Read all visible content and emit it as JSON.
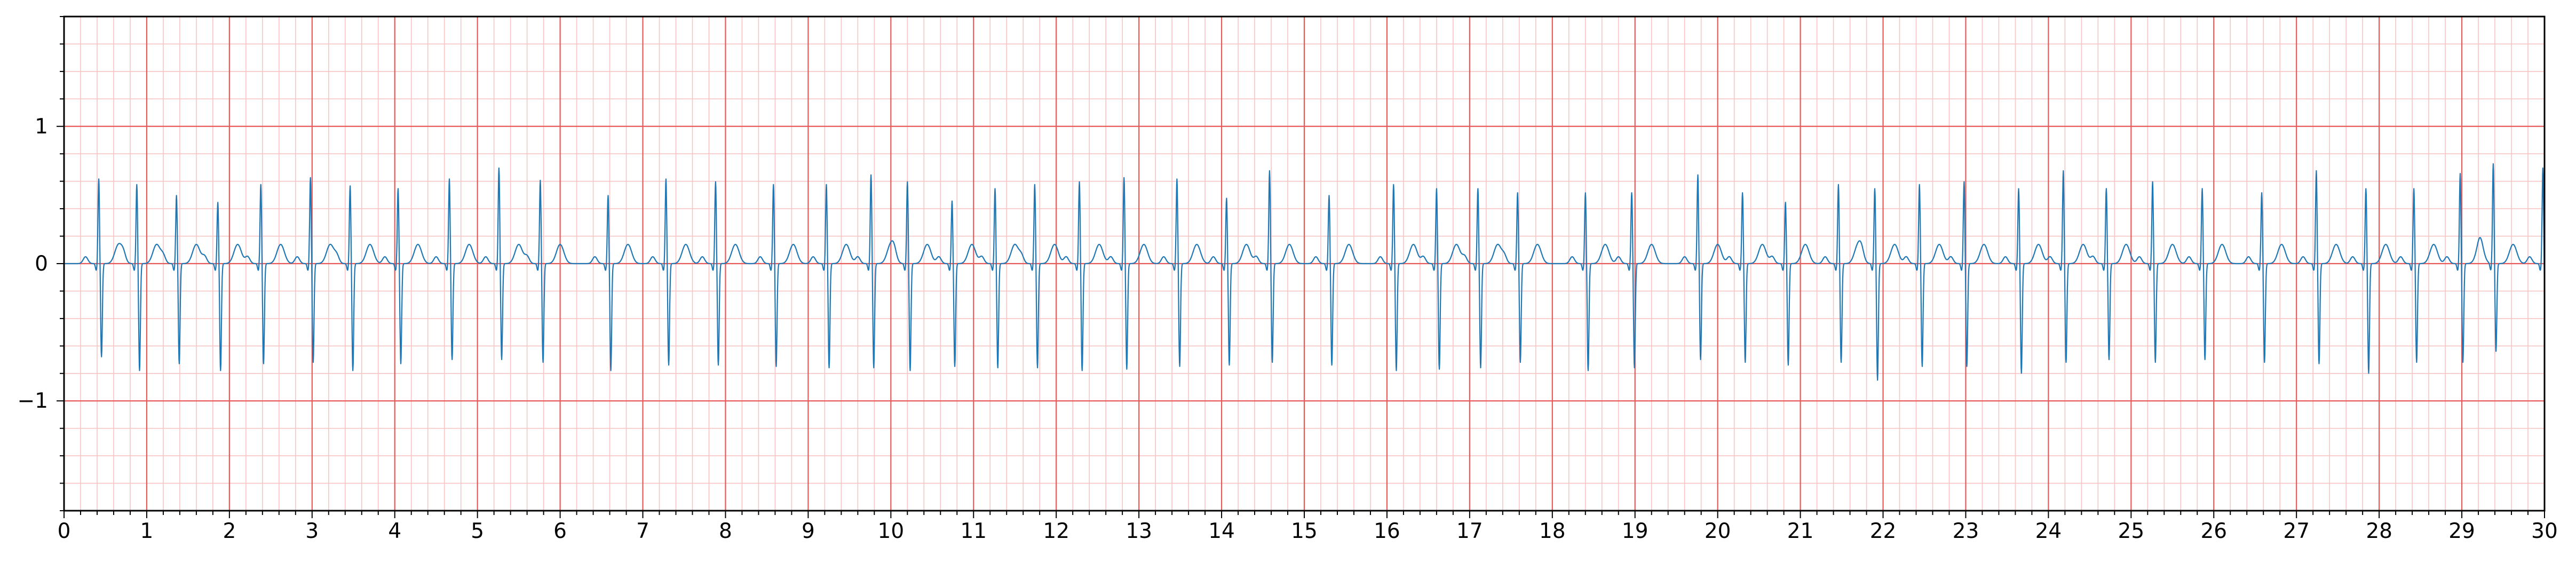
{
  "chart_data": {
    "type": "line",
    "title": "",
    "xlabel": "",
    "ylabel": "",
    "xlim": [
      0,
      30
    ],
    "ylim": [
      -1.8,
      1.8
    ],
    "x_ticks": [
      0,
      1,
      2,
      3,
      4,
      5,
      6,
      7,
      8,
      9,
      10,
      11,
      12,
      13,
      14,
      15,
      16,
      17,
      18,
      19,
      20,
      21,
      22,
      23,
      24,
      25,
      26,
      27,
      28,
      29,
      30
    ],
    "y_ticks": [
      -1,
      0,
      1
    ],
    "y_tick_labels": [
      "−1",
      "0",
      "1"
    ],
    "grid": true,
    "grid_style": "ecg paper: major lines every 1 s and 1 unit, minor lines every 0.2 s and 0.2 units",
    "legend": "none",
    "series": [
      {
        "color": "#1f77b4",
        "beat_times": [
          0.42,
          0.88,
          1.36,
          1.86,
          2.38,
          2.98,
          3.46,
          4.04,
          4.66,
          5.26,
          5.76,
          6.58,
          7.28,
          7.88,
          8.58,
          9.22,
          9.76,
          10.2,
          10.74,
          11.26,
          11.74,
          12.28,
          12.82,
          13.46,
          14.06,
          14.58,
          15.3,
          16.08,
          16.6,
          17.1,
          17.58,
          18.4,
          18.96,
          19.76,
          20.3,
          20.82,
          21.46,
          21.9,
          22.44,
          22.98,
          23.64,
          24.18,
          24.7,
          25.26,
          25.86,
          26.58,
          27.24,
          27.84,
          28.42,
          28.98,
          29.38,
          29.98
        ],
        "r_peak_amplitudes": [
          0.62,
          0.58,
          0.5,
          0.45,
          0.58,
          0.63,
          0.57,
          0.55,
          0.62,
          0.7,
          0.61,
          0.5,
          0.62,
          0.6,
          0.58,
          0.58,
          0.65,
          0.6,
          0.46,
          0.55,
          0.58,
          0.6,
          0.63,
          0.62,
          0.48,
          0.68,
          0.5,
          0.58,
          0.55,
          0.55,
          0.52,
          0.52,
          0.52,
          0.65,
          0.52,
          0.45,
          0.58,
          0.55,
          0.58,
          0.6,
          0.55,
          0.68,
          0.55,
          0.6,
          0.55,
          0.52,
          0.68,
          0.55,
          0.55,
          0.66,
          0.73,
          0.7
        ],
        "s_trough_amplitudes": [
          -0.68,
          -0.78,
          -0.73,
          -0.78,
          -0.73,
          -0.72,
          -0.78,
          -0.73,
          -0.7,
          -0.7,
          -0.72,
          -0.78,
          -0.74,
          -0.74,
          -0.75,
          -0.76,
          -0.76,
          -0.78,
          -0.75,
          -0.76,
          -0.76,
          -0.78,
          -0.77,
          -0.75,
          -0.74,
          -0.72,
          -0.74,
          -0.78,
          -0.77,
          -0.76,
          -0.72,
          -0.78,
          -0.76,
          -0.7,
          -0.72,
          -0.74,
          -0.72,
          -0.85,
          -0.75,
          -0.75,
          -0.8,
          -0.72,
          -0.7,
          -0.72,
          -0.7,
          -0.72,
          -0.73,
          -0.8,
          -0.72,
          -0.72,
          -0.64,
          -0.68
        ],
        "t_wave_amplitude": 0.14,
        "baseline": 0.0
      }
    ]
  }
}
